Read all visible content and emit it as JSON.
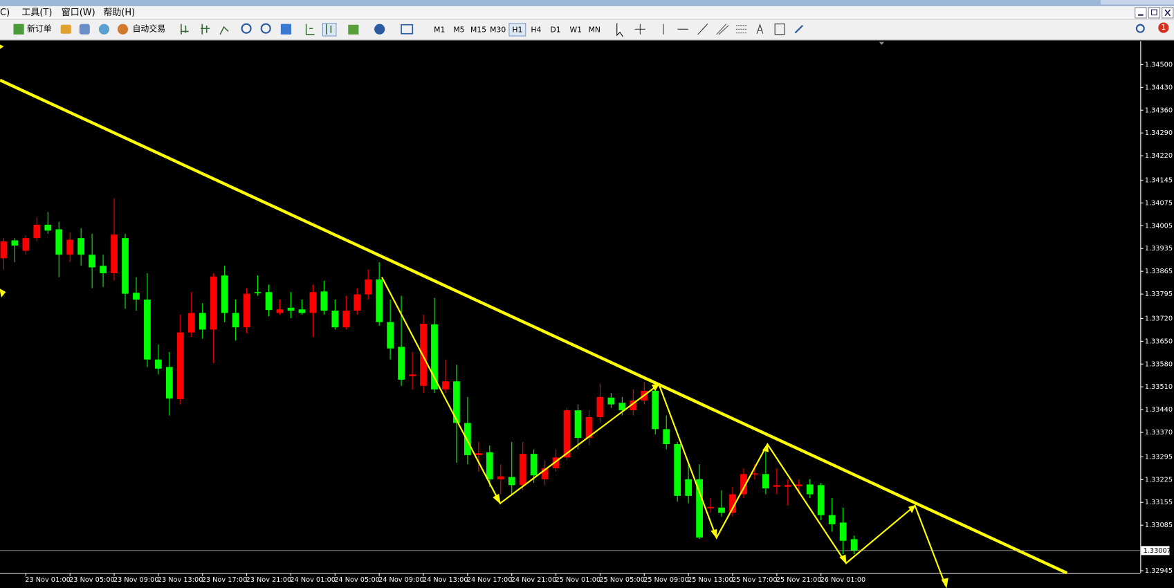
{
  "menu": {
    "items": [
      "C)",
      "工具(T)",
      "窗口(W)",
      "帮助(H)"
    ]
  },
  "toolbar": {
    "new_order": "新订单",
    "auto_trading": "自动交易",
    "timeframes": [
      "M1",
      "M5",
      "M15",
      "M30",
      "H1",
      "H4",
      "D1",
      "W1",
      "MN"
    ],
    "active_timeframe": "H1",
    "notifications": 1
  },
  "chart_data": {
    "type": "candlestick",
    "categories": [
      null,
      null,
      "23 Nov 01:00",
      null,
      null,
      null,
      "23 Nov 05:00",
      null,
      null,
      null,
      "23 Nov 09:00",
      null,
      null,
      null,
      "23 Nov 13:00",
      null,
      null,
      null,
      "23 Nov 17:00",
      null,
      null,
      null,
      "23 Nov 21:00",
      null,
      null,
      null,
      "24 Nov 01:00",
      null,
      null,
      null,
      "24 Nov 05:00",
      null,
      null,
      null,
      "24 Nov 09:00",
      null,
      null,
      null,
      "24 Nov 13:00",
      null,
      null,
      null,
      "24 Nov 17:00",
      null,
      null,
      null,
      "24 Nov 21:00",
      null,
      null,
      null,
      "25 Nov 01:00",
      null,
      null,
      null,
      "25 Nov 05:00",
      null,
      null,
      null,
      "25 Nov 09:00",
      null,
      null,
      null,
      "25 Nov 13:00",
      null,
      null,
      null,
      "25 Nov 17:00",
      null,
      null,
      null,
      "25 Nov 21:00",
      null,
      null,
      null,
      "26 Nov 01:00",
      null,
      null,
      null
    ],
    "ohlc": [
      [
        1.33905,
        1.33967,
        1.3387,
        1.33957
      ],
      [
        1.3396,
        1.33967,
        1.33893,
        1.33944
      ],
      [
        1.33928,
        1.33976,
        1.33916,
        1.33967
      ],
      [
        1.33967,
        1.34031,
        1.33957,
        1.34008
      ],
      [
        1.34008,
        1.34047,
        1.3398,
        1.3399
      ],
      [
        1.33994,
        1.34017,
        1.33847,
        1.33916
      ],
      [
        1.33916,
        1.33985,
        1.33893,
        1.33962
      ],
      [
        1.33967,
        1.33997,
        1.33882,
        1.33916
      ],
      [
        1.33916,
        1.3398,
        1.33813,
        1.33877
      ],
      [
        1.33882,
        1.33916,
        1.33817,
        1.33859
      ],
      [
        1.33859,
        1.34089,
        1.33836,
        1.33978
      ],
      [
        1.33967,
        1.3398,
        1.3375,
        1.33796
      ],
      [
        1.33799,
        1.33847,
        1.33744,
        1.33778
      ],
      [
        1.33778,
        1.33859,
        1.33571,
        1.33594
      ],
      [
        1.33594,
        1.3364,
        1.33548,
        1.33566
      ],
      [
        1.33571,
        1.33617,
        1.33422,
        1.33474
      ],
      [
        1.33472,
        1.33732,
        1.33456,
        1.33677
      ],
      [
        1.33677,
        1.33801,
        1.33663,
        1.33737
      ],
      [
        1.33737,
        1.33767,
        1.33658,
        1.33686
      ],
      [
        1.33686,
        1.33859,
        1.33583,
        1.33849
      ],
      [
        1.33852,
        1.33882,
        1.33709,
        1.33737
      ],
      [
        1.33737,
        1.33778,
        1.33652,
        1.33693
      ],
      [
        1.33693,
        1.33813,
        1.33675,
        1.33796
      ],
      [
        1.33801,
        1.33852,
        1.3379,
        1.33799
      ],
      [
        1.33801,
        1.33824,
        1.33727,
        1.33746
      ],
      [
        1.33737,
        1.33778,
        1.33732,
        1.33748
      ],
      [
        1.33753,
        1.33801,
        1.33721,
        1.33744
      ],
      [
        1.33748,
        1.33778,
        1.33732,
        1.33737
      ],
      [
        1.33737,
        1.33824,
        1.33663,
        1.33801
      ],
      [
        1.33803,
        1.33836,
        1.33732,
        1.33744
      ],
      [
        1.33744,
        1.33778,
        1.33686,
        1.33693
      ],
      [
        1.33693,
        1.3379,
        1.33686,
        1.33744
      ],
      [
        1.33744,
        1.33813,
        1.33732,
        1.33794
      ],
      [
        1.33794,
        1.3387,
        1.33778,
        1.3384
      ],
      [
        1.3384,
        1.33893,
        1.33698,
        1.33709
      ],
      [
        1.33709,
        1.33778,
        1.33594,
        1.33628
      ],
      [
        1.33633,
        1.3379,
        1.33513,
        1.33532
      ],
      [
        1.33543,
        1.33617,
        1.33502,
        1.33548
      ],
      [
        1.33513,
        1.33732,
        1.33491,
        1.33704
      ],
      [
        1.33702,
        1.33783,
        1.33491,
        1.33502
      ],
      [
        1.33502,
        1.33594,
        1.33491,
        1.33527
      ],
      [
        1.33527,
        1.33578,
        1.33277,
        1.33399
      ],
      [
        1.33399,
        1.33479,
        1.33272,
        1.333
      ],
      [
        1.333,
        1.33341,
        1.33249,
        1.33306
      ],
      [
        1.33309,
        1.3333,
        1.33203,
        1.33226
      ],
      [
        1.33226,
        1.33272,
        1.3318,
        1.33235
      ],
      [
        1.33233,
        1.33341,
        1.3318,
        1.33208
      ],
      [
        1.33208,
        1.33341,
        1.33192,
        1.33304
      ],
      [
        1.33304,
        1.33318,
        1.33215,
        1.33238
      ],
      [
        1.33226,
        1.33284,
        1.33208,
        1.3326
      ],
      [
        1.3326,
        1.33318,
        1.33249,
        1.33293
      ],
      [
        1.33293,
        1.33445,
        1.33284,
        1.33438
      ],
      [
        1.33438,
        1.33456,
        1.33318,
        1.33353
      ],
      [
        1.33353,
        1.33438,
        1.3333,
        1.33417
      ],
      [
        1.33417,
        1.3352,
        1.33399,
        1.33479
      ],
      [
        1.33477,
        1.33491,
        1.33445,
        1.33456
      ],
      [
        1.33461,
        1.33479,
        1.33422,
        1.33438
      ],
      [
        1.33438,
        1.33502,
        1.33422,
        1.33468
      ],
      [
        1.33468,
        1.33525,
        1.33456,
        1.33498
      ],
      [
        1.33498,
        1.33513,
        1.33364,
        1.3338
      ],
      [
        1.3338,
        1.33422,
        1.33318,
        1.33334
      ],
      [
        1.33334,
        1.33341,
        1.33157,
        1.33175
      ],
      [
        1.33226,
        1.33272,
        1.33152,
        1.33175
      ],
      [
        1.33226,
        1.33272,
        1.33042,
        1.33047
      ],
      [
        1.33137,
        1.33168,
        1.33123,
        1.33141
      ],
      [
        1.33139,
        1.33192,
        1.33111,
        1.33123
      ],
      [
        1.33123,
        1.33203,
        1.33111,
        1.3318
      ],
      [
        1.3318,
        1.3326,
        1.33168,
        1.33242
      ],
      [
        1.33242,
        1.33272,
        1.33226,
        1.33244
      ],
      [
        1.33242,
        1.33318,
        1.3318,
        1.33198
      ],
      [
        1.33203,
        1.3326,
        1.3318,
        1.33208
      ],
      [
        1.33203,
        1.33226,
        1.33145,
        1.33208
      ],
      [
        1.33205,
        1.33226,
        1.3318,
        1.3321
      ],
      [
        1.3321,
        1.33226,
        1.33168,
        1.3318
      ],
      [
        1.33208,
        1.33215,
        1.331,
        1.33116
      ],
      [
        1.33116,
        1.33168,
        1.33065,
        1.33088
      ],
      [
        1.33093,
        1.33139,
        1.32996,
        1.33037
      ],
      [
        1.33042,
        1.33053,
        1.32996,
        1.33007
      ]
    ],
    "up_color": "#ff0000",
    "down_color": "#00ff00",
    "ylim": [
      1.32938,
      1.34565
    ],
    "yticks": [
      {
        "value": 1.345,
        "label": "1.34500"
      },
      {
        "value": 1.3443,
        "label": "1.34430"
      },
      {
        "value": 1.3436,
        "label": "1.34360"
      },
      {
        "value": 1.3429,
        "label": "1.34290"
      },
      {
        "value": 1.3422,
        "label": "1.34220"
      },
      1.34145,
      1.34075,
      1.34005,
      1.33935,
      1.33865,
      1.33795,
      {
        "value": 1.3372,
        "label": "1.33720"
      },
      {
        "value": 1.3365,
        "label": "1.33650"
      },
      {
        "value": 1.3358,
        "label": "1.33580"
      },
      {
        "value": 1.3351,
        "label": "1.33510"
      },
      {
        "value": 1.3344,
        "label": "1.33440"
      },
      {
        "value": 1.3337,
        "label": "1.33370"
      },
      1.33295,
      1.33225,
      1.33155,
      1.33085,
      1.32945
    ],
    "current_price": 1.33007
  }
}
